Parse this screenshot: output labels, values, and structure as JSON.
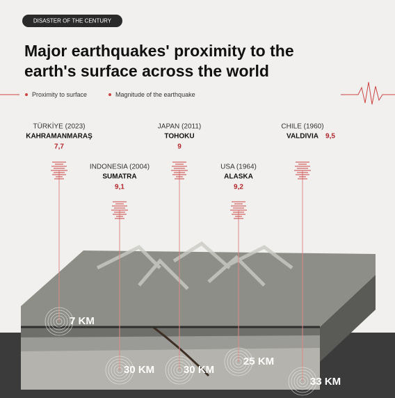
{
  "header": {
    "tag": "DISASTER OF THE CENTURY",
    "title_lines": [
      "Major earthquakes' proximity to the",
      "earth's surface across the world"
    ]
  },
  "legend": [
    "Proximity to surface",
    "Magnitude of the earthquake"
  ],
  "quakes": [
    {
      "place": "TÜRKİYE (2023)",
      "city": "KAHRAMANMARAŞ",
      "magnitude": "7,7",
      "depth": "7 KM"
    },
    {
      "place": "INDONESIA (2004)",
      "city": "SUMATRA",
      "magnitude": "9,1",
      "depth": "30 KM"
    },
    {
      "place": "JAPAN (2011)",
      "city": "TOHOKU",
      "magnitude": "9",
      "depth": "30 KM"
    },
    {
      "place": "USA (1964)",
      "city": "ALASKA",
      "magnitude": "9,2",
      "depth": "25 KM"
    },
    {
      "place": "CHILE  (1960)",
      "city": "VALDIVIA",
      "magnitude": "9,5",
      "depth": "33 KM"
    }
  ]
}
